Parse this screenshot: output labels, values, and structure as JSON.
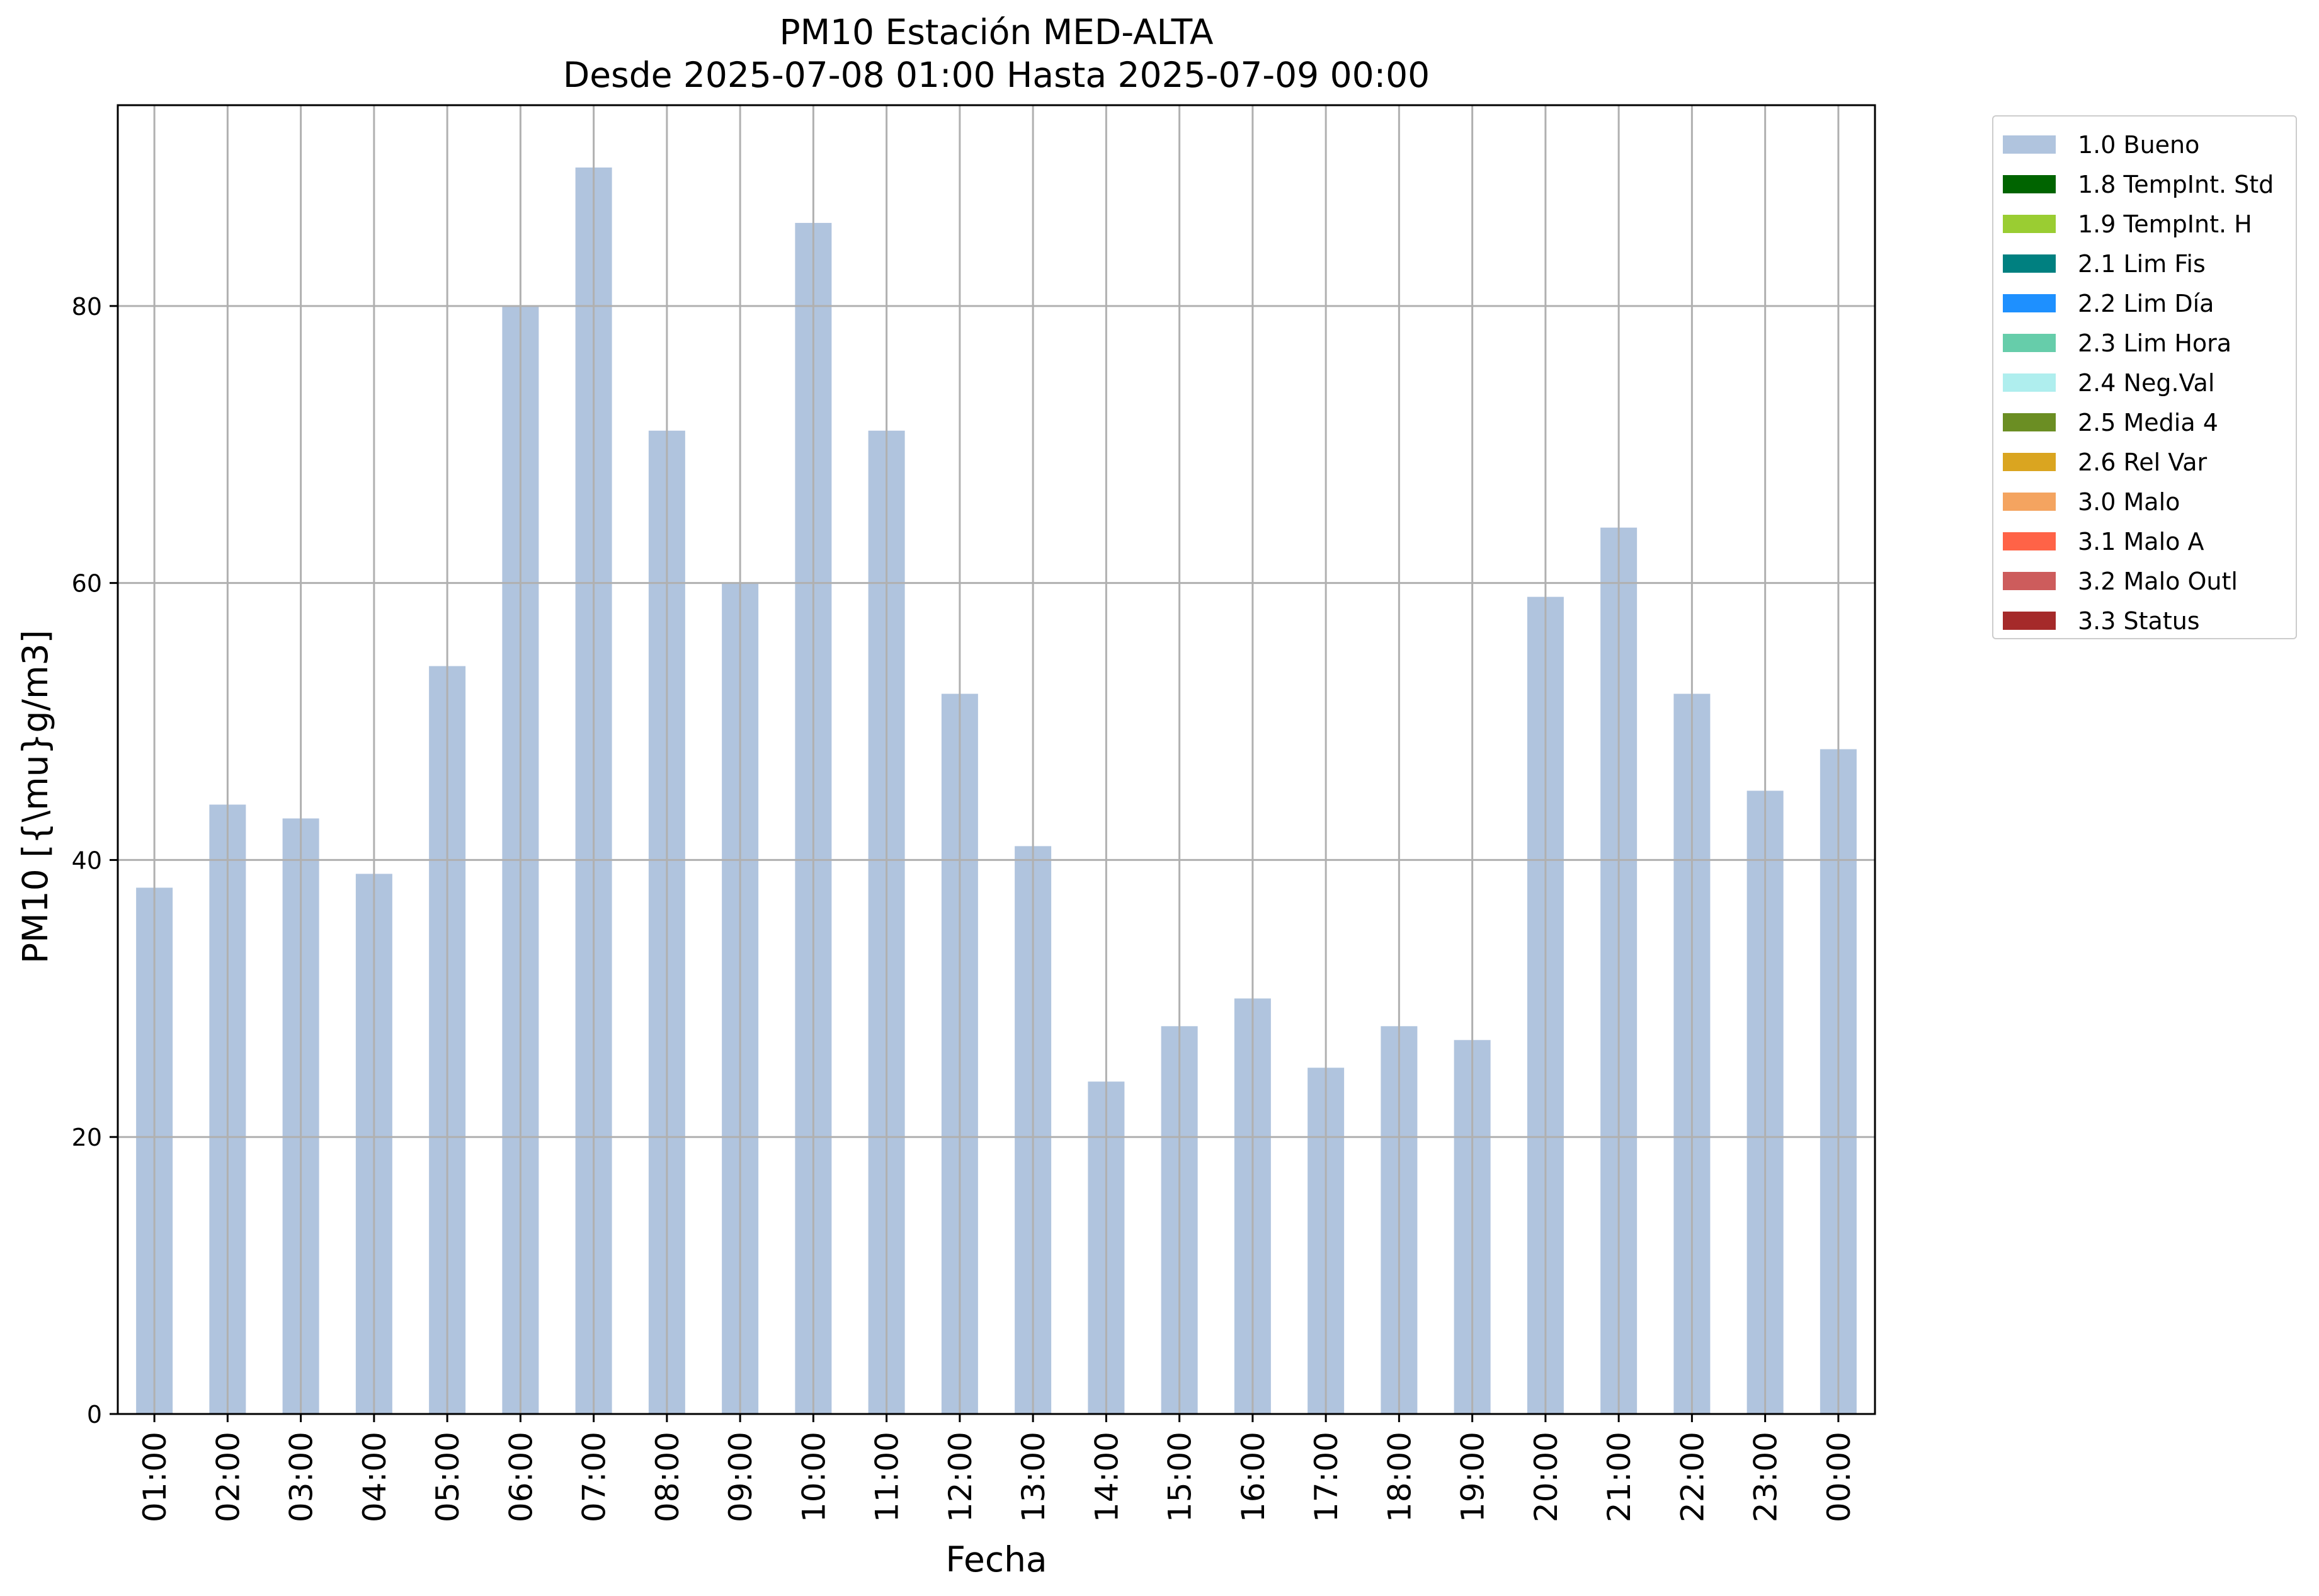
{
  "chart_data": {
    "type": "bar",
    "title": "PM10 Estación MED-ALTA",
    "subtitle": "Desde 2025-07-08 01:00 Hasta 2025-07-09 00:00",
    "xlabel": "Fecha",
    "ylabel": "PM10 [{\\mu}g/m3]",
    "categories": [
      "01:00",
      "02:00",
      "03:00",
      "04:00",
      "05:00",
      "06:00",
      "07:00",
      "08:00",
      "09:00",
      "10:00",
      "11:00",
      "12:00",
      "13:00",
      "14:00",
      "15:00",
      "16:00",
      "17:00",
      "18:00",
      "19:00",
      "20:00",
      "21:00",
      "22:00",
      "23:00",
      "00:00"
    ],
    "series": [
      {
        "name": "1.0 Bueno",
        "color": "#b0c4de",
        "values": [
          38,
          44,
          43,
          39,
          54,
          80,
          90,
          71,
          60,
          86,
          71,
          52,
          41,
          24,
          28,
          30,
          25,
          28,
          27,
          59,
          64,
          52,
          45,
          48
        ]
      }
    ],
    "ylim": [
      0,
      94.5
    ],
    "yticks": [
      0,
      20,
      40,
      60,
      80
    ],
    "grid": true,
    "legend_position": "outside-right",
    "legend": [
      {
        "label": "1.0 Bueno",
        "color": "#b0c4de"
      },
      {
        "label": "1.8 TempInt. Std",
        "color": "#006400"
      },
      {
        "label": "1.9 TempInt. H",
        "color": "#9acd32"
      },
      {
        "label": "2.1 Lim Fis",
        "color": "#008080"
      },
      {
        "label": "2.2 Lim Día",
        "color": "#1e90ff"
      },
      {
        "label": "2.3 Lim Hora",
        "color": "#66cdaa"
      },
      {
        "label": "2.4 Neg.Val",
        "color": "#afeeee"
      },
      {
        "label": "2.5 Media 4",
        "color": "#6b8e23"
      },
      {
        "label": "2.6 Rel Var",
        "color": "#daa520"
      },
      {
        "label": "3.0 Malo",
        "color": "#f4a460"
      },
      {
        "label": "3.1 Malo A",
        "color": "#ff6347"
      },
      {
        "label": "3.2 Malo Outl",
        "color": "#cd5c5c"
      },
      {
        "label": "3.3 Status",
        "color": "#a52a2a"
      }
    ]
  }
}
